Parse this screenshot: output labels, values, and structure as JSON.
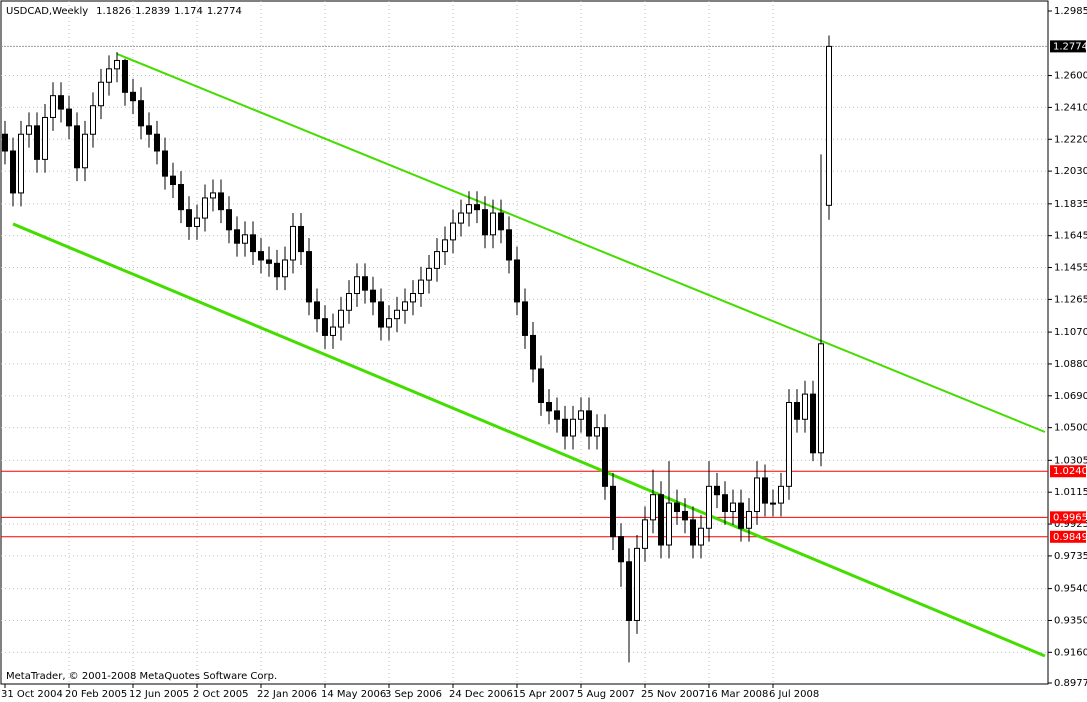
{
  "chart_data": {
    "type": "candlestick",
    "title": "USDCAD,Weekly",
    "watermark": "MetaTrader, © 2001-2008 MetaQuotes Software Corp.",
    "categories": [
      "31 Oct 2004",
      null,
      null,
      null,
      null,
      null,
      null,
      null,
      "20 Feb 2005",
      null,
      null,
      null,
      null,
      null,
      null,
      null,
      "12 Jun 2005",
      null,
      null,
      null,
      null,
      null,
      null,
      null,
      "2 Oct 2005",
      null,
      null,
      null,
      null,
      null,
      null,
      null,
      "22 Jan 2006",
      null,
      null,
      null,
      null,
      null,
      null,
      null,
      "14 May 2006",
      null,
      null,
      null,
      null,
      null,
      null,
      null,
      "3 Sep 2006",
      null,
      null,
      null,
      null,
      null,
      null,
      null,
      "24 Dec 2006",
      null,
      null,
      null,
      null,
      null,
      null,
      null,
      "15 Apr 2007",
      null,
      null,
      null,
      null,
      null,
      null,
      null,
      "5 Aug 2007",
      null,
      null,
      null,
      null,
      null,
      null,
      null,
      "25 Nov 2007",
      null,
      null,
      null,
      null,
      null,
      null,
      null,
      "16 Mar 2008",
      null,
      null,
      null,
      null,
      null,
      null,
      null,
      "6 Jul 2008",
      null,
      null,
      null,
      null,
      null,
      null,
      null
    ],
    "open": [
      1.225,
      1.215,
      1.19,
      1.225,
      1.23,
      1.21,
      1.235,
      1.248,
      1.24,
      1.23,
      1.205,
      1.225,
      1.242,
      1.256,
      1.264,
      1.269,
      1.25,
      1.245,
      1.23,
      1.225,
      1.215,
      1.2,
      1.195,
      1.18,
      1.17,
      1.175,
      1.187,
      1.19,
      1.18,
      1.168,
      1.16,
      1.165,
      1.155,
      1.15,
      1.148,
      1.14,
      1.15,
      1.17,
      1.155,
      1.125,
      1.115,
      1.105,
      1.11,
      1.12,
      1.13,
      1.14,
      1.132,
      1.125,
      1.11,
      1.115,
      1.12,
      1.125,
      1.13,
      1.138,
      1.145,
      1.155,
      1.162,
      1.172,
      1.178,
      1.183,
      1.18,
      1.165,
      1.178,
      1.168,
      1.15,
      1.125,
      1.105,
      1.085,
      1.065,
      1.06,
      1.055,
      1.045,
      1.055,
      1.06,
      1.045,
      1.05,
      1.015,
      0.985,
      0.97,
      0.935,
      0.978,
      0.995,
      1.01,
      0.98,
      1.005,
      1.0,
      0.995,
      0.98,
      0.99,
      1.015,
      1.01,
      1.0,
      1.005,
      0.99,
      1.0,
      1.02,
      1.005,
      1.005,
      1.015,
      1.065,
      1.055,
      1.07,
      1.035,
      1.1826
    ],
    "high": [
      1.233,
      1.223,
      1.233,
      1.238,
      1.238,
      1.243,
      1.256,
      1.256,
      1.248,
      1.238,
      1.233,
      1.25,
      1.264,
      1.272,
      1.274,
      1.27,
      1.258,
      1.253,
      1.238,
      1.233,
      1.223,
      1.208,
      1.203,
      1.188,
      1.183,
      1.195,
      1.198,
      1.198,
      1.188,
      1.176,
      1.173,
      1.173,
      1.163,
      1.158,
      1.156,
      1.158,
      1.178,
      1.178,
      1.163,
      1.133,
      1.123,
      1.118,
      1.128,
      1.138,
      1.148,
      1.148,
      1.14,
      1.133,
      1.123,
      1.128,
      1.133,
      1.138,
      1.146,
      1.153,
      1.163,
      1.17,
      1.18,
      1.186,
      1.191,
      1.191,
      1.188,
      1.186,
      1.186,
      1.176,
      1.158,
      1.133,
      1.113,
      1.093,
      1.073,
      1.068,
      1.063,
      1.063,
      1.068,
      1.068,
      1.058,
      1.058,
      1.023,
      0.993,
      0.978,
      0.986,
      1.003,
      1.025,
      1.018,
      1.03,
      1.013,
      1.008,
      1.003,
      0.998,
      1.03,
      1.023,
      1.018,
      1.013,
      1.013,
      1.008,
      1.03,
      1.028,
      1.013,
      1.023,
      1.073,
      1.073,
      1.078,
      1.078,
      1.213,
      1.2839
    ],
    "low": [
      1.207,
      1.182,
      1.182,
      1.217,
      1.202,
      1.202,
      1.227,
      1.232,
      1.222,
      1.197,
      1.197,
      1.217,
      1.234,
      1.248,
      1.256,
      1.242,
      1.237,
      1.222,
      1.217,
      1.207,
      1.192,
      1.187,
      1.172,
      1.162,
      1.162,
      1.167,
      1.179,
      1.172,
      1.16,
      1.152,
      1.152,
      1.147,
      1.142,
      1.14,
      1.132,
      1.132,
      1.142,
      1.147,
      1.117,
      1.107,
      1.097,
      1.097,
      1.102,
      1.112,
      1.122,
      1.124,
      1.117,
      1.102,
      1.102,
      1.107,
      1.112,
      1.117,
      1.122,
      1.13,
      1.137,
      1.147,
      1.154,
      1.164,
      1.17,
      1.172,
      1.157,
      1.157,
      1.16,
      1.142,
      1.117,
      1.097,
      1.077,
      1.057,
      1.052,
      1.047,
      1.037,
      1.037,
      1.047,
      1.037,
      1.037,
      1.007,
      0.977,
      0.955,
      0.91,
      0.927,
      0.97,
      0.987,
      0.972,
      0.972,
      0.992,
      0.987,
      0.972,
      0.972,
      0.982,
      1.002,
      0.992,
      0.992,
      0.982,
      0.982,
      0.992,
      0.997,
      0.997,
      0.997,
      1.007,
      1.047,
      1.047,
      1.03,
      1.027,
      1.174
    ],
    "close": [
      1.215,
      1.19,
      1.225,
      1.23,
      1.21,
      1.235,
      1.248,
      1.24,
      1.23,
      1.205,
      1.225,
      1.242,
      1.256,
      1.264,
      1.269,
      1.25,
      1.245,
      1.23,
      1.225,
      1.215,
      1.2,
      1.195,
      1.18,
      1.17,
      1.175,
      1.187,
      1.19,
      1.18,
      1.168,
      1.16,
      1.165,
      1.155,
      1.15,
      1.148,
      1.14,
      1.15,
      1.17,
      1.155,
      1.125,
      1.115,
      1.105,
      1.11,
      1.12,
      1.13,
      1.14,
      1.132,
      1.125,
      1.11,
      1.115,
      1.12,
      1.125,
      1.13,
      1.138,
      1.145,
      1.155,
      1.162,
      1.172,
      1.178,
      1.183,
      1.18,
      1.165,
      1.178,
      1.168,
      1.15,
      1.125,
      1.105,
      1.085,
      1.065,
      1.06,
      1.055,
      1.045,
      1.055,
      1.06,
      1.045,
      1.05,
      1.015,
      0.985,
      0.97,
      0.935,
      0.978,
      0.995,
      1.01,
      0.98,
      1.005,
      1.0,
      0.995,
      0.98,
      0.99,
      1.015,
      1.01,
      1.0,
      1.005,
      0.99,
      1.0,
      1.02,
      1.005,
      1.005,
      1.015,
      1.065,
      1.055,
      1.07,
      1.035,
      1.1,
      1.2774
    ],
    "ylim": [
      0.8977,
      1.2985
    ],
    "yticks": [
      1.2985,
      {
        "value": 1.26,
        "label": "1.2600"
      },
      {
        "value": 1.241,
        "label": "1.2410"
      },
      {
        "value": 1.222,
        "label": "1.2220"
      },
      {
        "value": 1.203,
        "label": "1.2030"
      },
      1.1835,
      1.1645,
      1.1455,
      1.1265,
      {
        "value": 1.107,
        "label": "1.1070"
      },
      {
        "value": 1.088,
        "label": "1.0880"
      },
      {
        "value": 1.069,
        "label": "1.0690"
      },
      {
        "value": 1.05,
        "label": "1.0500"
      },
      1.0305,
      1.0115,
      0.9925,
      0.9735,
      {
        "value": 0.954,
        "label": "0.9540"
      },
      {
        "value": 0.935,
        "label": "0.9350"
      },
      {
        "value": 0.916,
        "label": "0.9160"
      },
      0.8977
    ],
    "grid": true,
    "hlines": [
      {
        "value": 1.024,
        "label": "1.0240"
      },
      {
        "value": 0.9965,
        "label": "0.9965"
      },
      {
        "value": 0.9849,
        "label": "0.9849"
      }
    ],
    "hline_color": "#ff0000",
    "trendlines": [
      {
        "start": [
          14,
          1.2729
        ],
        "end": [
          130,
          1.0474
        ],
        "color": "#44dd00"
      },
      {
        "start": [
          1,
          1.1715
        ],
        "end": [
          130,
          0.9138
        ],
        "color": "#44dd00"
      }
    ]
  }
}
